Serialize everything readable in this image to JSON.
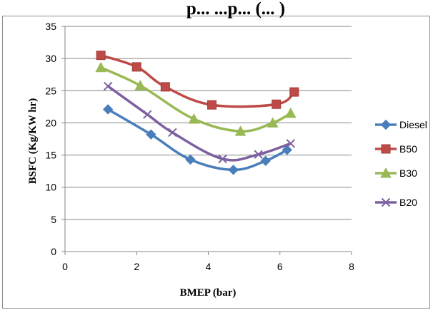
{
  "chart_data": {
    "type": "line",
    "title": "p... ...p... (... )",
    "xlabel": "BMEP (bar)",
    "ylabel": "BSFC (Kg/KW hr)",
    "xlim": [
      0,
      8
    ],
    "ylim": [
      0,
      35
    ],
    "xticks": [
      "0",
      "2",
      "4",
      "6",
      "8"
    ],
    "yticks": [
      "0",
      "5",
      "10",
      "15",
      "20",
      "25",
      "30",
      "35"
    ],
    "grid": "horizontal",
    "legend_position": "right",
    "series": [
      {
        "name": "Diesel",
        "color": "#4a7ebb",
        "marker": "diamond",
        "x": [
          1.2,
          2.4,
          3.5,
          4.7,
          5.6,
          6.2
        ],
        "y": [
          22.1,
          18.2,
          14.3,
          12.7,
          14.1,
          15.8
        ]
      },
      {
        "name": "B50",
        "color": "#be4b48",
        "marker": "square",
        "x": [
          1.0,
          2.0,
          2.8,
          4.1,
          5.9,
          6.4
        ],
        "y": [
          30.5,
          28.7,
          25.6,
          22.8,
          22.9,
          24.8
        ]
      },
      {
        "name": "B30",
        "color": "#98b954",
        "marker": "triangle",
        "x": [
          1.0,
          2.1,
          3.6,
          4.9,
          5.8,
          6.3
        ],
        "y": [
          28.6,
          25.8,
          20.6,
          18.7,
          20.0,
          21.5
        ]
      },
      {
        "name": "B20",
        "color": "#7d60a0",
        "marker": "x",
        "x": [
          1.2,
          2.3,
          3.0,
          4.4,
          5.4,
          6.3
        ],
        "y": [
          25.7,
          21.3,
          18.5,
          14.4,
          15.1,
          16.8
        ]
      }
    ]
  }
}
